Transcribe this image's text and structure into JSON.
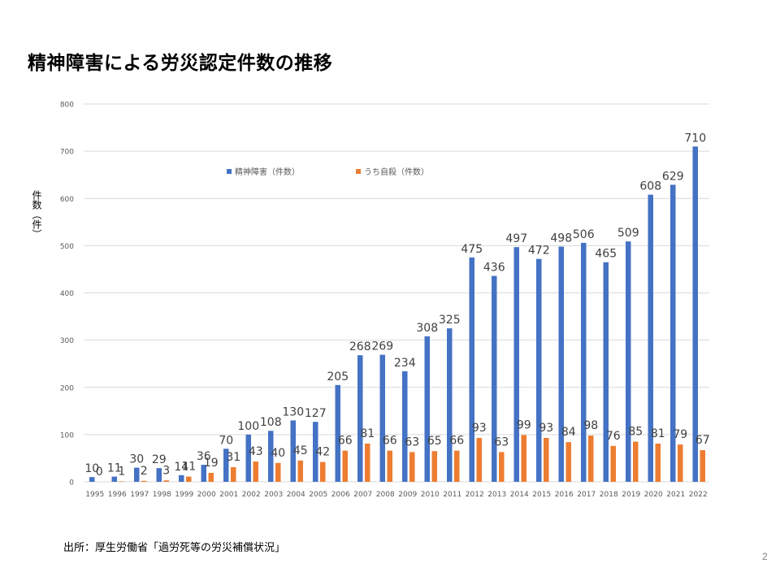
{
  "slide": {
    "title": "精神障害による労災認定件数の推移",
    "source": "出所：厚生労働省「過労死等の労災補償状況」",
    "page_number": "2"
  },
  "colors": {
    "series1": "#4472C4",
    "series2": "#ED7D31",
    "grid": "#D9D9D9",
    "axis_text": "#595959",
    "label_text": "#404040"
  },
  "chart_data": {
    "type": "bar",
    "title": "",
    "xlabel": "",
    "ylabel": "件数（件）",
    "ylim": [
      0,
      800
    ],
    "yticks": [
      0,
      100,
      200,
      300,
      400,
      500,
      600,
      700,
      800
    ],
    "grid": true,
    "legend_position": "top",
    "categories": [
      "1995",
      "1996",
      "1997",
      "1998",
      "1999",
      "2000",
      "2001",
      "2002",
      "2003",
      "2004",
      "2005",
      "2006",
      "2007",
      "2008",
      "2009",
      "2010",
      "2011",
      "2012",
      "2013",
      "2014",
      "2015",
      "2016",
      "2017",
      "2018",
      "2019",
      "2020",
      "2021",
      "2022"
    ],
    "series": [
      {
        "name": "精神障害（件数）",
        "values": [
          10,
          11,
          30,
          29,
          14,
          36,
          70,
          100,
          108,
          130,
          127,
          205,
          268,
          269,
          234,
          308,
          325,
          475,
          436,
          497,
          472,
          498,
          506,
          465,
          509,
          608,
          629,
          710
        ]
      },
      {
        "name": "うち自殺（件数）",
        "values": [
          0,
          1,
          2,
          3,
          11,
          19,
          31,
          43,
          40,
          45,
          42,
          66,
          81,
          66,
          63,
          65,
          66,
          93,
          63,
          99,
          93,
          84,
          98,
          76,
          85,
          81,
          79,
          67
        ]
      }
    ]
  }
}
